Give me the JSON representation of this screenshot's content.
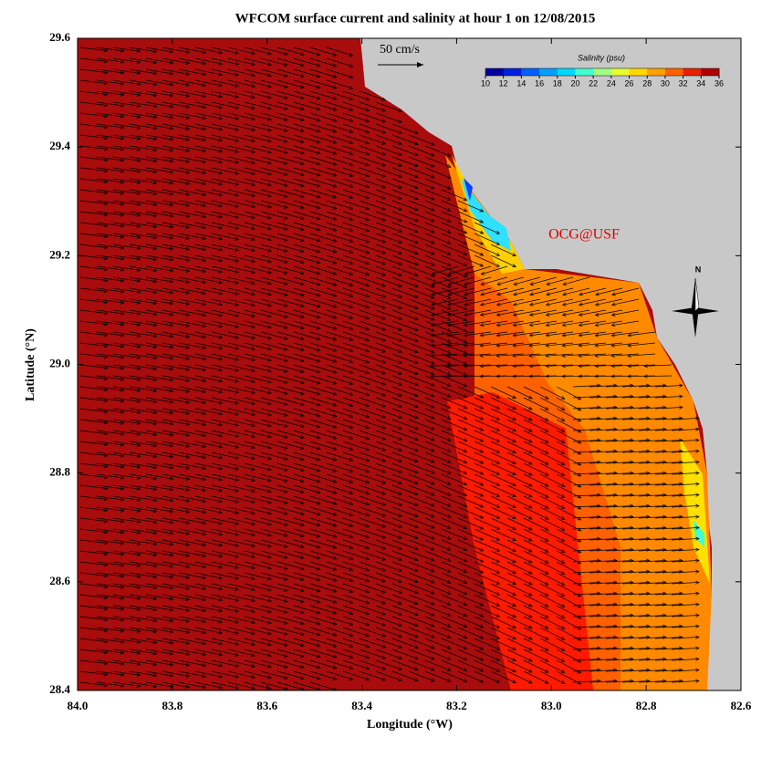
{
  "map": {
    "title": "WFCOM surface current and salinity at hour 1 on 12/08/2015",
    "xlabel": "Longitude (°W)",
    "ylabel": "Latitude (°N)",
    "xlim": [
      84.0,
      82.6
    ],
    "ylim": [
      28.4,
      29.6
    ],
    "xticks": [
      {
        "value": 84.0,
        "label": "84.0"
      },
      83.8,
      83.6,
      83.4,
      83.2,
      {
        "value": 83.0,
        "label": "83.0"
      },
      82.8,
      82.6
    ],
    "yticks": [
      28.4,
      28.6,
      28.8,
      {
        "value": 29.0,
        "label": "29.0"
      },
      29.2,
      29.4,
      29.6
    ],
    "scale_label": "50 cm/s",
    "credit": "OCG@USF",
    "north": "N",
    "colorbar": {
      "title": "Salinity (psu)",
      "ticks": [
        10,
        12,
        14,
        16,
        18,
        20,
        22,
        24,
        26,
        28,
        30,
        32,
        34,
        36
      ],
      "colors": [
        "#0000a0",
        "#0020e0",
        "#0060ff",
        "#00a0ff",
        "#00d8ff",
        "#40ffd0",
        "#a0ff80",
        "#e8ff30",
        "#ffd800",
        "#ffa000",
        "#ff6000",
        "#e82000",
        "#b00000"
      ]
    }
  }
}
